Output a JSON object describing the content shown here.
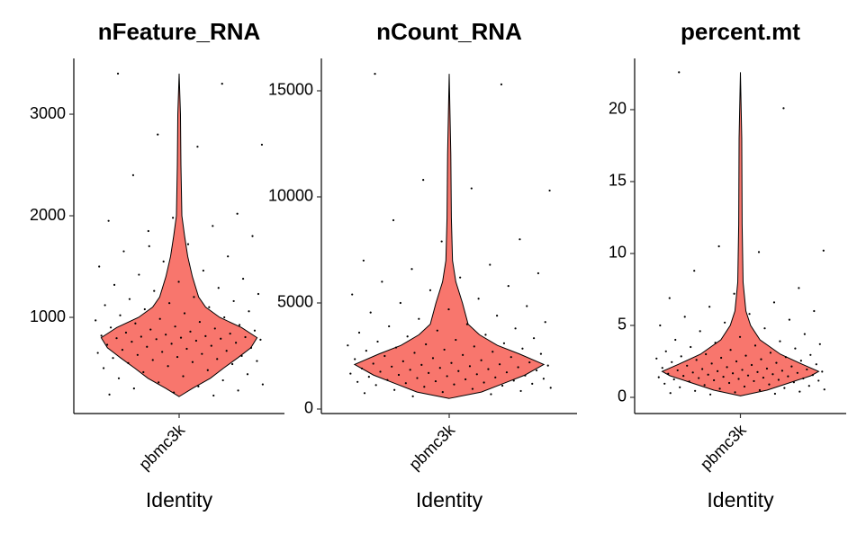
{
  "chart_data": [
    {
      "type": "violin",
      "title": "nFeature_RNA",
      "x_label": "Identity",
      "categories": [
        "pbmc3k"
      ],
      "color": "#f8766d",
      "ylim": [
        53,
        3549
      ],
      "yticks": [
        1000,
        2000,
        3000
      ],
      "violin": {
        "y": [
          220,
          300,
          400,
          500,
          600,
          700,
          800,
          900,
          1000,
          1100,
          1200,
          1400,
          1600,
          1800,
          2000,
          2500,
          3000,
          3400
        ],
        "width": [
          0,
          0.17,
          0.4,
          0.57,
          0.75,
          0.92,
          1,
          0.8,
          0.52,
          0.34,
          0.25,
          0.17,
          0.11,
          0.07,
          0.035,
          0.023,
          0.017,
          0
        ]
      },
      "points": [
        3400,
        3300,
        2800,
        2700,
        2680,
        2400,
        2020,
        1980,
        1950,
        1900,
        1850,
        1800,
        1720,
        1650,
        1600,
        1550,
        1500,
        1460,
        1420,
        1380,
        1350,
        1320,
        1290,
        1260,
        1230,
        1200,
        1180,
        1160,
        1140,
        1120,
        1100,
        1080,
        1060,
        1040,
        1020,
        1000,
        985,
        970,
        955,
        940,
        925,
        910,
        900,
        890,
        880,
        870,
        860,
        850,
        840,
        830,
        820,
        815,
        810,
        805,
        800,
        795,
        790,
        785,
        780,
        770,
        760,
        750,
        740,
        730,
        720,
        710,
        700,
        690,
        680,
        670,
        660,
        650,
        640,
        630,
        620,
        610,
        600,
        590,
        580,
        570,
        560,
        550,
        540,
        520,
        500,
        480,
        460,
        440,
        420,
        400,
        380,
        360,
        340,
        320,
        300,
        280,
        260,
        240,
        230,
        1700
      ]
    },
    {
      "type": "violin",
      "title": "nCount_RNA",
      "x_label": "Identity",
      "categories": [
        "pbmc3k"
      ],
      "color": "#f8766d",
      "ylim": [
        -212,
        16525
      ],
      "yticks": [
        0,
        5000,
        10000,
        15000
      ],
      "violin": {
        "y": [
          500,
          800,
          1200,
          1600,
          2100,
          2600,
          3000,
          3500,
          4000,
          5000,
          6000,
          7000,
          9000,
          12000,
          15800
        ],
        "width": [
          0,
          0.34,
          0.57,
          0.8,
          1,
          0.74,
          0.51,
          0.32,
          0.2,
          0.14,
          0.07,
          0.035,
          0.023,
          0.017,
          0
        ]
      },
      "points": [
        15800,
        15300,
        10800,
        10300,
        10400,
        8900,
        8000,
        7900,
        7000,
        6800,
        6600,
        6400,
        6200,
        6000,
        5800,
        5600,
        5400,
        5200,
        5000,
        4850,
        4700,
        4550,
        4400,
        4250,
        4100,
        4000,
        3900,
        3800,
        3700,
        3600,
        3500,
        3420,
        3340,
        3260,
        3180,
        3100,
        3050,
        3000,
        2950,
        2900,
        2850,
        2800,
        2750,
        2700,
        2650,
        2600,
        2550,
        2500,
        2450,
        2400,
        2350,
        2300,
        2250,
        2200,
        2170,
        2140,
        2110,
        2080,
        2050,
        2020,
        2000,
        1970,
        1940,
        1910,
        1880,
        1850,
        1820,
        1790,
        1760,
        1730,
        1700,
        1670,
        1640,
        1610,
        1580,
        1550,
        1520,
        1490,
        1460,
        1430,
        1400,
        1370,
        1340,
        1310,
        1280,
        1250,
        1220,
        1190,
        1160,
        1130,
        1100,
        1050,
        1000,
        950,
        900,
        850,
        800,
        750,
        700,
        600
      ]
    },
    {
      "type": "violin",
      "title": "percent.mt",
      "x_label": "Identity",
      "categories": [
        "pbmc3k"
      ],
      "color": "#f8766d",
      "ylim": [
        -1.125,
        23.56
      ],
      "yticks": [
        0,
        5,
        10,
        15,
        20
      ],
      "violin": {
        "y": [
          0.1,
          0.5,
          1,
          1.5,
          1.8,
          2.3,
          3,
          4,
          5,
          6,
          8,
          12,
          18,
          22.6
        ],
        "width": [
          0,
          0.34,
          0.62,
          0.9,
          1,
          0.79,
          0.51,
          0.25,
          0.13,
          0.07,
          0.034,
          0.022,
          0.017,
          0
        ]
      },
      "points": [
        22.6,
        20.1,
        10.5,
        10.2,
        10.1,
        8.8,
        7.6,
        7.2,
        6.9,
        6.6,
        6.3,
        6.0,
        5.8,
        5.6,
        5.4,
        5.2,
        5.0,
        4.8,
        4.6,
        4.4,
        4.2,
        4.0,
        3.9,
        3.8,
        3.7,
        3.6,
        3.5,
        3.4,
        3.3,
        3.2,
        3.1,
        3.0,
        2.95,
        2.9,
        2.85,
        2.8,
        2.75,
        2.7,
        2.65,
        2.6,
        2.55,
        2.5,
        2.45,
        2.4,
        2.35,
        2.3,
        2.25,
        2.2,
        2.15,
        2.1,
        2.05,
        2.0,
        1.97,
        1.94,
        1.91,
        1.88,
        1.85,
        1.82,
        1.79,
        1.76,
        1.73,
        1.7,
        1.67,
        1.64,
        1.61,
        1.58,
        1.55,
        1.52,
        1.49,
        1.46,
        1.43,
        1.4,
        1.37,
        1.34,
        1.31,
        1.28,
        1.25,
        1.22,
        1.19,
        1.16,
        1.13,
        1.1,
        1.05,
        1.0,
        0.95,
        0.9,
        0.85,
        0.8,
        0.75,
        0.7,
        0.65,
        0.6,
        0.55,
        0.5,
        0.45,
        0.4,
        0.35,
        0.3,
        0.25,
        0.2
      ]
    }
  ]
}
